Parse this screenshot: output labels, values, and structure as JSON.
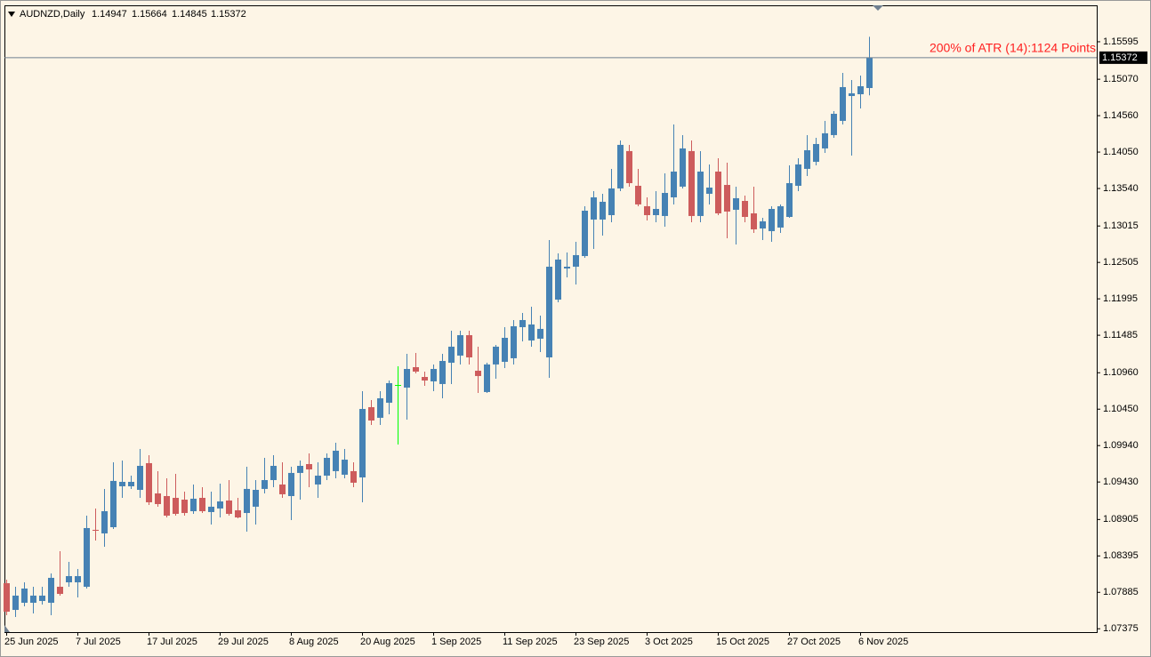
{
  "chart_data": {
    "type": "candlestick",
    "title": "AUDNZD,Daily",
    "annotation": "200% of ATR (14):1124 Points",
    "categories": [
      "25 Jun 2025",
      null,
      null,
      null,
      null,
      null,
      null,
      null,
      "7 Jul 2025",
      null,
      null,
      null,
      null,
      null,
      null,
      null,
      "17 Jul 2025",
      null,
      null,
      null,
      null,
      null,
      null,
      null,
      "29 Jul 2025",
      null,
      null,
      null,
      null,
      null,
      null,
      null,
      "8 Aug 2025",
      null,
      null,
      null,
      null,
      null,
      null,
      null,
      "20 Aug 2025",
      null,
      null,
      null,
      null,
      null,
      null,
      null,
      "1 Sep 2025",
      null,
      null,
      null,
      null,
      null,
      null,
      null,
      "11 Sep 2025",
      null,
      null,
      null,
      null,
      null,
      null,
      null,
      "23 Sep 2025",
      null,
      null,
      null,
      null,
      null,
      null,
      null,
      "3 Oct 2025",
      null,
      null,
      null,
      null,
      null,
      null,
      null,
      "15 Oct 2025",
      null,
      null,
      null,
      null,
      null,
      null,
      null,
      "27 Oct 2025",
      null,
      null,
      null,
      null,
      null,
      null,
      null,
      "6 Nov 2025",
      null
    ],
    "open": [
      1.08013,
      1.07639,
      1.07739,
      1.07739,
      1.07764,
      1.07739,
      1.07963,
      1.08025,
      1.08025,
      1.07963,
      1.0876,
      1.0871,
      1.08797,
      1.0937,
      1.0937,
      1.0932,
      1.09694,
      1.0927,
      1.09233,
      1.09208,
      1.09183,
      1.09021,
      1.09208,
      1.09009,
      1.09059,
      1.09171,
      1.09034,
      1.08996,
      1.09084,
      1.09333,
      1.09457,
      1.09395,
      1.09233,
      1.09557,
      1.09681,
      1.09395,
      1.09519,
      1.09582,
      1.09532,
      1.09582,
      1.09494,
      1.10478,
      1.10329,
      1.1054,
      1.10789,
      1.10752,
      1.11038,
      1.10901,
      1.10839,
      1.10802,
      1.111,
      1.112,
      1.11486,
      1.10988,
      1.1069,
      1.11076,
      1.11113,
      1.11163,
      1.11598,
      1.11412,
      1.11437,
      1.11175,
      1.11984,
      1.1242,
      1.12445,
      1.12594,
      1.13105,
      1.13105,
      1.13167,
      1.13541,
      1.14064,
      1.13578,
      1.13292,
      1.13167,
      1.13155,
      1.13416,
      1.13566,
      1.14064,
      1.13155,
      1.13466,
      1.13777,
      1.1359,
      1.13242,
      1.13366,
      1.13192,
      1.1298,
      1.12943,
      1.12993,
      1.13142,
      1.13578,
      1.13815,
      1.13914,
      1.14101,
      1.14288,
      1.14487,
      1.14835,
      1.1486,
      1.14947
    ],
    "high": [
      1.08063,
      1.07963,
      1.08025,
      1.07963,
      1.07963,
      1.0815,
      1.08461,
      1.08312,
      1.08212,
      1.08959,
      1.09059,
      1.09333,
      1.09706,
      1.09731,
      1.09519,
      1.09893,
      1.09806,
      1.09582,
      1.09482,
      1.09544,
      1.09295,
      1.09395,
      1.09357,
      1.09295,
      1.09407,
      1.09457,
      1.09208,
      1.09644,
      1.09457,
      1.09768,
      1.09806,
      1.09706,
      1.09644,
      1.09731,
      1.09831,
      1.09706,
      1.09831,
      1.0998,
      1.09893,
      1.09706,
      1.10702,
      1.10578,
      1.10702,
      1.10851,
      1.11051,
      1.11225,
      1.11237,
      1.10976,
      1.11076,
      1.11225,
      1.11549,
      1.11549,
      1.11549,
      1.11325,
      1.111,
      1.11349,
      1.11598,
      1.11698,
      1.11798,
      1.11885,
      1.1176,
      1.12819,
      1.12632,
      1.12644,
      1.12794,
      1.13292,
      1.13503,
      1.13466,
      1.13815,
      1.14213,
      1.14151,
      1.13815,
      1.13416,
      1.13503,
      1.13752,
      1.14437,
      1.14288,
      1.14213,
      1.14064,
      1.13877,
      1.13964,
      1.13902,
      1.13566,
      1.13441,
      1.13566,
      1.1313,
      1.13292,
      1.13317,
      1.13864,
      1.13964,
      1.14288,
      1.1425,
      1.14487,
      1.14624,
      1.15159,
      1.1506,
      1.15122,
      1.15664
    ],
    "low": [
      1.07565,
      1.0754,
      1.07689,
      1.0759,
      1.07714,
      1.07565,
      1.07839,
      1.07963,
      1.07814,
      1.07938,
      1.0861,
      1.08523,
      1.08772,
      1.09208,
      1.09333,
      1.09208,
      1.09108,
      1.09084,
      1.08934,
      1.08959,
      1.08959,
      1.08984,
      1.08996,
      1.08835,
      1.08934,
      1.08959,
      1.08922,
      1.08735,
      1.08835,
      1.0927,
      1.09357,
      1.09208,
      1.08897,
      1.09183,
      1.09357,
      1.09208,
      1.09457,
      1.09482,
      1.09482,
      1.09357,
      1.09146,
      1.10229,
      1.10229,
      1.10378,
      1.09955,
      1.10304,
      1.10951,
      1.10777,
      1.10702,
      1.10602,
      1.10802,
      1.11076,
      1.11076,
      1.10677,
      1.10677,
      1.10876,
      1.11026,
      1.11076,
      1.11399,
      1.11325,
      1.1125,
      1.10889,
      1.11947,
      1.12296,
      1.12196,
      1.1257,
      1.12694,
      1.12881,
      1.13068,
      1.13503,
      1.13566,
      1.13292,
      1.13092,
      1.13068,
      1.13005,
      1.13317,
      1.13541,
      1.13068,
      1.13068,
      1.13317,
      1.13167,
      1.12843,
      1.12756,
      1.13068,
      1.12918,
      1.12819,
      1.12794,
      1.12918,
      1.1313,
      1.13503,
      1.13715,
      1.13864,
      1.14039,
      1.1425,
      1.14437,
      1.14001,
      1.14661,
      1.14845
    ],
    "close": [
      1.07614,
      1.07839,
      1.07938,
      1.07839,
      1.07839,
      1.08088,
      1.07863,
      1.08112,
      1.08112,
      1.08785,
      1.08747,
      1.09021,
      1.09445,
      1.09432,
      1.09432,
      1.09656,
      1.09146,
      1.09121,
      1.08959,
      1.08984,
      1.08996,
      1.09196,
      1.09021,
      1.09084,
      1.09158,
      1.08984,
      1.08934,
      1.09333,
      1.0932,
      1.09457,
      1.09656,
      1.09258,
      1.09557,
      1.09656,
      1.09606,
      1.09519,
      1.09768,
      1.09868,
      1.09743,
      1.0942,
      1.10453,
      1.10291,
      1.10602,
      1.10814,
      1.10789,
      1.11013,
      1.10976,
      1.10851,
      1.11013,
      1.11125,
      1.11325,
      1.11486,
      1.11175,
      1.10914,
      1.11076,
      1.11325,
      1.11449,
      1.11611,
      1.11698,
      1.11636,
      1.11574,
      1.12445,
      1.12545,
      1.12445,
      1.12607,
      1.13229,
      1.13416,
      1.13354,
      1.13541,
      1.14151,
      1.13615,
      1.13317,
      1.13167,
      1.13254,
      1.13478,
      1.13777,
      1.14101,
      1.13155,
      1.13777,
      1.13553,
      1.13192,
      1.13217,
      1.13404,
      1.13142,
      1.12968,
      1.1308,
      1.13254,
      1.13292,
      1.13615,
      1.13877,
      1.14076,
      1.14163,
      1.14313,
      1.14586,
      1.1496,
      1.14873,
      1.14972,
      1.15372
    ],
    "up_color": "#4682b4",
    "down_color": "#cd5c5c",
    "doji_color": "#00ff00",
    "ylim": [
      1.07328,
      1.16105
    ],
    "yticks": [
      1.15595,
      {
        "value": 1.1507,
        "label": "1.15070"
      },
      {
        "value": 1.1456,
        "label": "1.14560"
      },
      {
        "value": 1.1405,
        "label": "1.14050"
      },
      {
        "value": 1.1354,
        "label": "1.13540"
      },
      1.13015,
      1.12505,
      1.11995,
      1.11485,
      {
        "value": 1.1096,
        "label": "1.10960"
      },
      {
        "value": 1.1045,
        "label": "1.10450"
      },
      {
        "value": 1.0994,
        "label": "1.09940"
      },
      {
        "value": 1.0943,
        "label": "1.09430"
      },
      1.08905,
      1.08395,
      1.07885,
      1.07375
    ],
    "grid": false
  }
}
